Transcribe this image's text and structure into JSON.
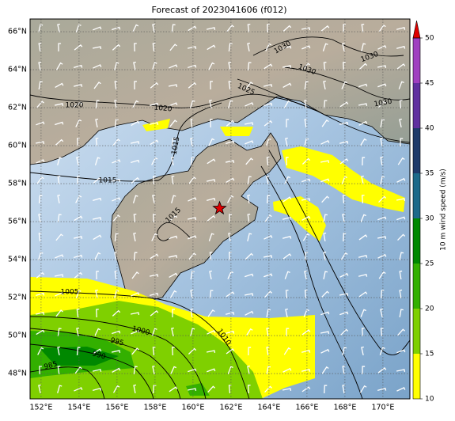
{
  "map": {
    "title": "Forecast of 2023041606 (f012)",
    "lon_range": [
      151.42,
      171.42
    ],
    "lat_range": [
      46.67,
      66.67
    ],
    "lon_ticks": [
      {
        "value": 152,
        "label": "152°E"
      },
      {
        "value": 154,
        "label": "154°E"
      },
      {
        "value": 156,
        "label": "156°E"
      },
      {
        "value": 158,
        "label": "158°E"
      },
      {
        "value": 160,
        "label": "160°E"
      },
      {
        "value": 162,
        "label": "162°E"
      },
      {
        "value": 164,
        "label": "164°E"
      },
      {
        "value": 166,
        "label": "166°E"
      },
      {
        "value": 168,
        "label": "168°E"
      },
      {
        "value": 170,
        "label": "170°E"
      }
    ],
    "lat_ticks": [
      {
        "value": 48,
        "label": "48°N"
      },
      {
        "value": 50,
        "label": "50°N"
      },
      {
        "value": 52,
        "label": "52°N"
      },
      {
        "value": 54,
        "label": "54°N"
      },
      {
        "value": 56,
        "label": "56°N"
      },
      {
        "value": 58,
        "label": "58°N"
      },
      {
        "value": 60,
        "label": "60°N"
      },
      {
        "value": 62,
        "label": "62°N"
      },
      {
        "value": 64,
        "label": "64°N"
      },
      {
        "value": 66,
        "label": "66°N"
      }
    ],
    "colorbar": {
      "label": "10 m wind speed (m/s)",
      "levels": [
        10,
        15,
        20,
        25,
        30,
        35,
        40,
        45,
        50
      ],
      "colors": [
        "#ffff00",
        "#7fd000",
        "#33b000",
        "#008800",
        "#1d6a8a",
        "#1e3a6a",
        "#6030a0",
        "#a040c0"
      ],
      "extend_color": "#e00000"
    },
    "contour_labels": [
      1030,
      1030,
      1030,
      1030,
      1025,
      1020,
      1020,
      1015,
      1015,
      1015,
      1005,
      1000,
      995,
      990,
      985,
      1010
    ],
    "marker": {
      "lon": 161.4,
      "lat": 56.7
    }
  }
}
